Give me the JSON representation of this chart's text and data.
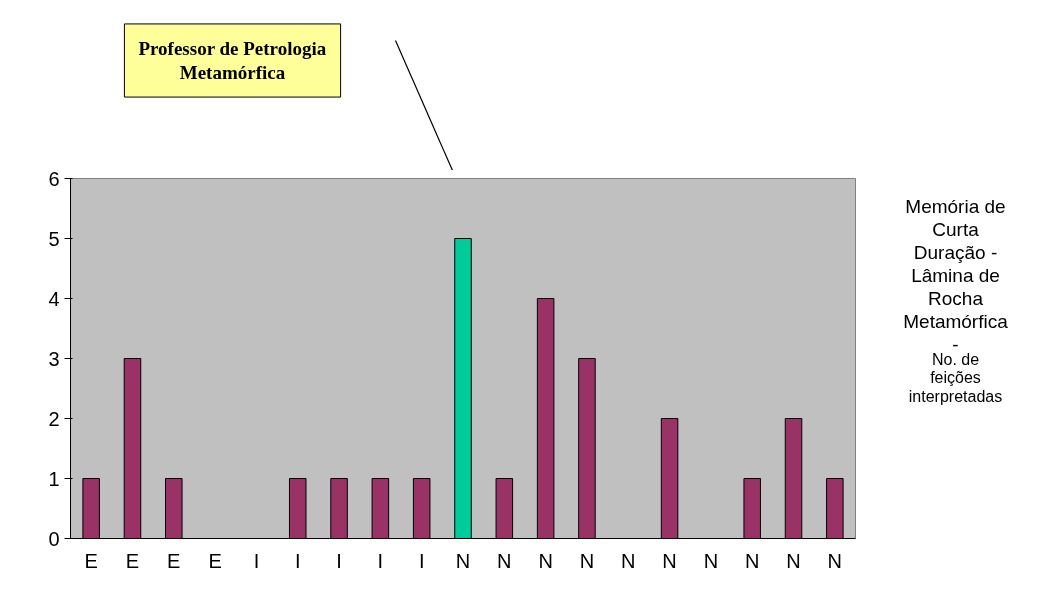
{
  "chart_data": {
    "type": "bar",
    "categories": [
      "E",
      "E",
      "E",
      "E",
      "I",
      "I",
      "I",
      "I",
      "I",
      "N",
      "N",
      "N",
      "N",
      "N",
      "N",
      "N",
      "N",
      "N",
      "N"
    ],
    "values": [
      1,
      3,
      1,
      0,
      0,
      1,
      1,
      1,
      1,
      5,
      1,
      4,
      3,
      0,
      2,
      0,
      1,
      2,
      1
    ],
    "colors": [
      "#993366",
      "#993366",
      "#993366",
      "#993366",
      "#993366",
      "#993366",
      "#993366",
      "#993366",
      "#993366",
      "#00cc99",
      "#993366",
      "#993366",
      "#993366",
      "#993366",
      "#993366",
      "#993366",
      "#993366",
      "#993366",
      "#993366"
    ],
    "ylim": [
      0,
      6
    ],
    "yticks": [
      0,
      1,
      2,
      3,
      4,
      5,
      6
    ],
    "grid": false,
    "annotations": [
      "Memória de Curta Duração - Lâmina de Rocha Metamórfica -",
      "No. de feições interpretadas",
      "Professor de Petrologia Metamórfica"
    ]
  }
}
